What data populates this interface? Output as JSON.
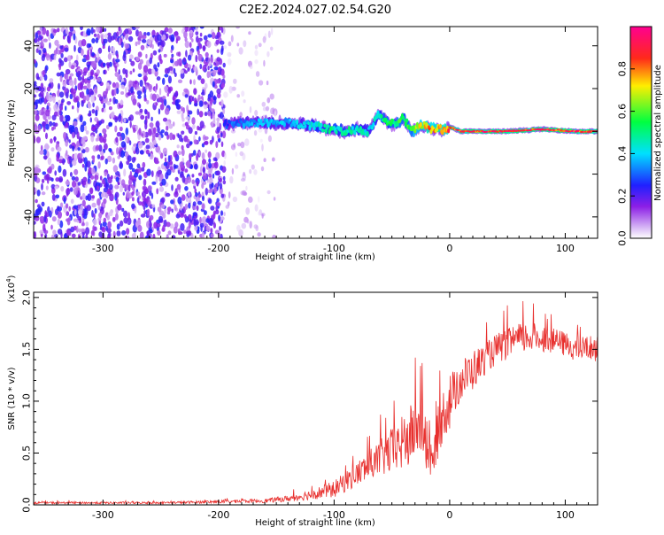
{
  "title": "C2E2.2024.027.02.54.G20",
  "chart_data": [
    {
      "type": "heatmap",
      "title": "C2E2.2024.027.02.54.G20",
      "xlabel": "Height of straight line (km)",
      "ylabel": "Frequency (Hz)",
      "xlim": [
        -360,
        128
      ],
      "ylim": [
        -50,
        49
      ],
      "xticks": [
        -300,
        -200,
        -100,
        0,
        100
      ],
      "xtick_labels": [
        "-300",
        "-200",
        "-100",
        "0",
        "100"
      ],
      "yticks": [
        -40,
        -20,
        0,
        20,
        40
      ],
      "ytick_labels": [
        "-40",
        "-20",
        "0",
        "20",
        "40"
      ],
      "colorbar": {
        "label": "Normalized spectral amplitude",
        "range": [
          0,
          1
        ],
        "ticks": [
          0.0,
          0.2,
          0.4,
          0.6,
          0.8
        ],
        "tick_labels": [
          "0.0",
          "0.2",
          "0.4",
          "0.6",
          "0.8"
        ],
        "colormap": "rainbow-white-purple-blue-cyan-green-yellow-red-magenta"
      },
      "regions": [
        {
          "x_range": [
            -360,
            -195
          ],
          "f_range": [
            -50,
            49
          ],
          "description": "broadband noise",
          "amplitude": 0.2
        },
        {
          "x_range": [
            -195,
            -150
          ],
          "f_range": [
            -50,
            49
          ],
          "description": "sparse noise",
          "amplitude": 0.08
        }
      ],
      "ridge": {
        "x": [
          -195,
          -180,
          -160,
          -140,
          -120,
          -105,
          -90,
          -80,
          -70,
          -62,
          -55,
          -48,
          -40,
          -32,
          -25,
          -20,
          -15,
          -10,
          -5,
          0,
          10,
          30,
          50,
          80,
          110,
          128
        ],
        "freq": [
          3,
          4,
          4,
          4,
          3,
          1,
          0,
          1,
          0,
          8,
          5,
          3,
          6,
          0,
          3,
          2,
          1,
          1,
          1,
          2,
          0,
          0,
          0,
          1,
          0,
          0
        ],
        "amplitude": [
          0.3,
          0.35,
          0.4,
          0.4,
          0.45,
          0.5,
          0.5,
          0.5,
          0.45,
          0.5,
          0.55,
          0.55,
          0.6,
          0.65,
          0.75,
          0.8,
          0.85,
          0.85,
          0.9,
          0.9,
          0.95,
          0.95,
          0.95,
          0.95,
          0.95,
          0.95
        ]
      }
    },
    {
      "type": "line",
      "xlabel": "Height of straight line (km)",
      "ylabel": "SNR (10 * v/v)",
      "y_multiplier": "(x10",
      "y_multiplier_exp": "4",
      "y_multiplier_close": ")",
      "xlim": [
        -360,
        128
      ],
      "ylim": [
        0,
        2.05
      ],
      "xticks": [
        -300,
        -200,
        -100,
        0,
        100
      ],
      "xtick_labels": [
        "-300",
        "-200",
        "-100",
        "0",
        "100"
      ],
      "yticks": [
        0.0,
        0.5,
        1.0,
        1.5,
        2.0
      ],
      "ytick_labels": [
        "0.0",
        "0.5",
        "1.0",
        "1.5",
        "2.0"
      ],
      "series": [
        {
          "color": "#e8302e",
          "x": [
            -360,
            -300,
            -250,
            -200,
            -160,
            -140,
            -120,
            -100,
            -80,
            -60,
            -45,
            -35,
            -25,
            -20,
            -15,
            -10,
            -5,
            0,
            5,
            10,
            20,
            30,
            40,
            50,
            60,
            70,
            80,
            90,
            100,
            110,
            120,
            128
          ],
          "y": [
            0.02,
            0.02,
            0.02,
            0.03,
            0.04,
            0.06,
            0.1,
            0.15,
            0.3,
            0.45,
            0.55,
            0.65,
            0.8,
            0.5,
            0.4,
            0.7,
            0.9,
            1.0,
            1.1,
            1.2,
            1.3,
            1.4,
            1.5,
            1.55,
            1.6,
            1.62,
            1.6,
            1.58,
            1.55,
            1.5,
            1.52,
            1.5
          ],
          "noise": [
            0.01,
            0.01,
            0.01,
            0.015,
            0.02,
            0.03,
            0.05,
            0.08,
            0.12,
            0.18,
            0.25,
            0.3,
            0.3,
            0.2,
            0.15,
            0.25,
            0.25,
            0.3,
            0.2,
            0.2,
            0.2,
            0.15,
            0.15,
            0.15,
            0.15,
            0.15,
            0.12,
            0.12,
            0.12,
            0.12,
            0.12,
            0.12
          ]
        }
      ]
    }
  ]
}
